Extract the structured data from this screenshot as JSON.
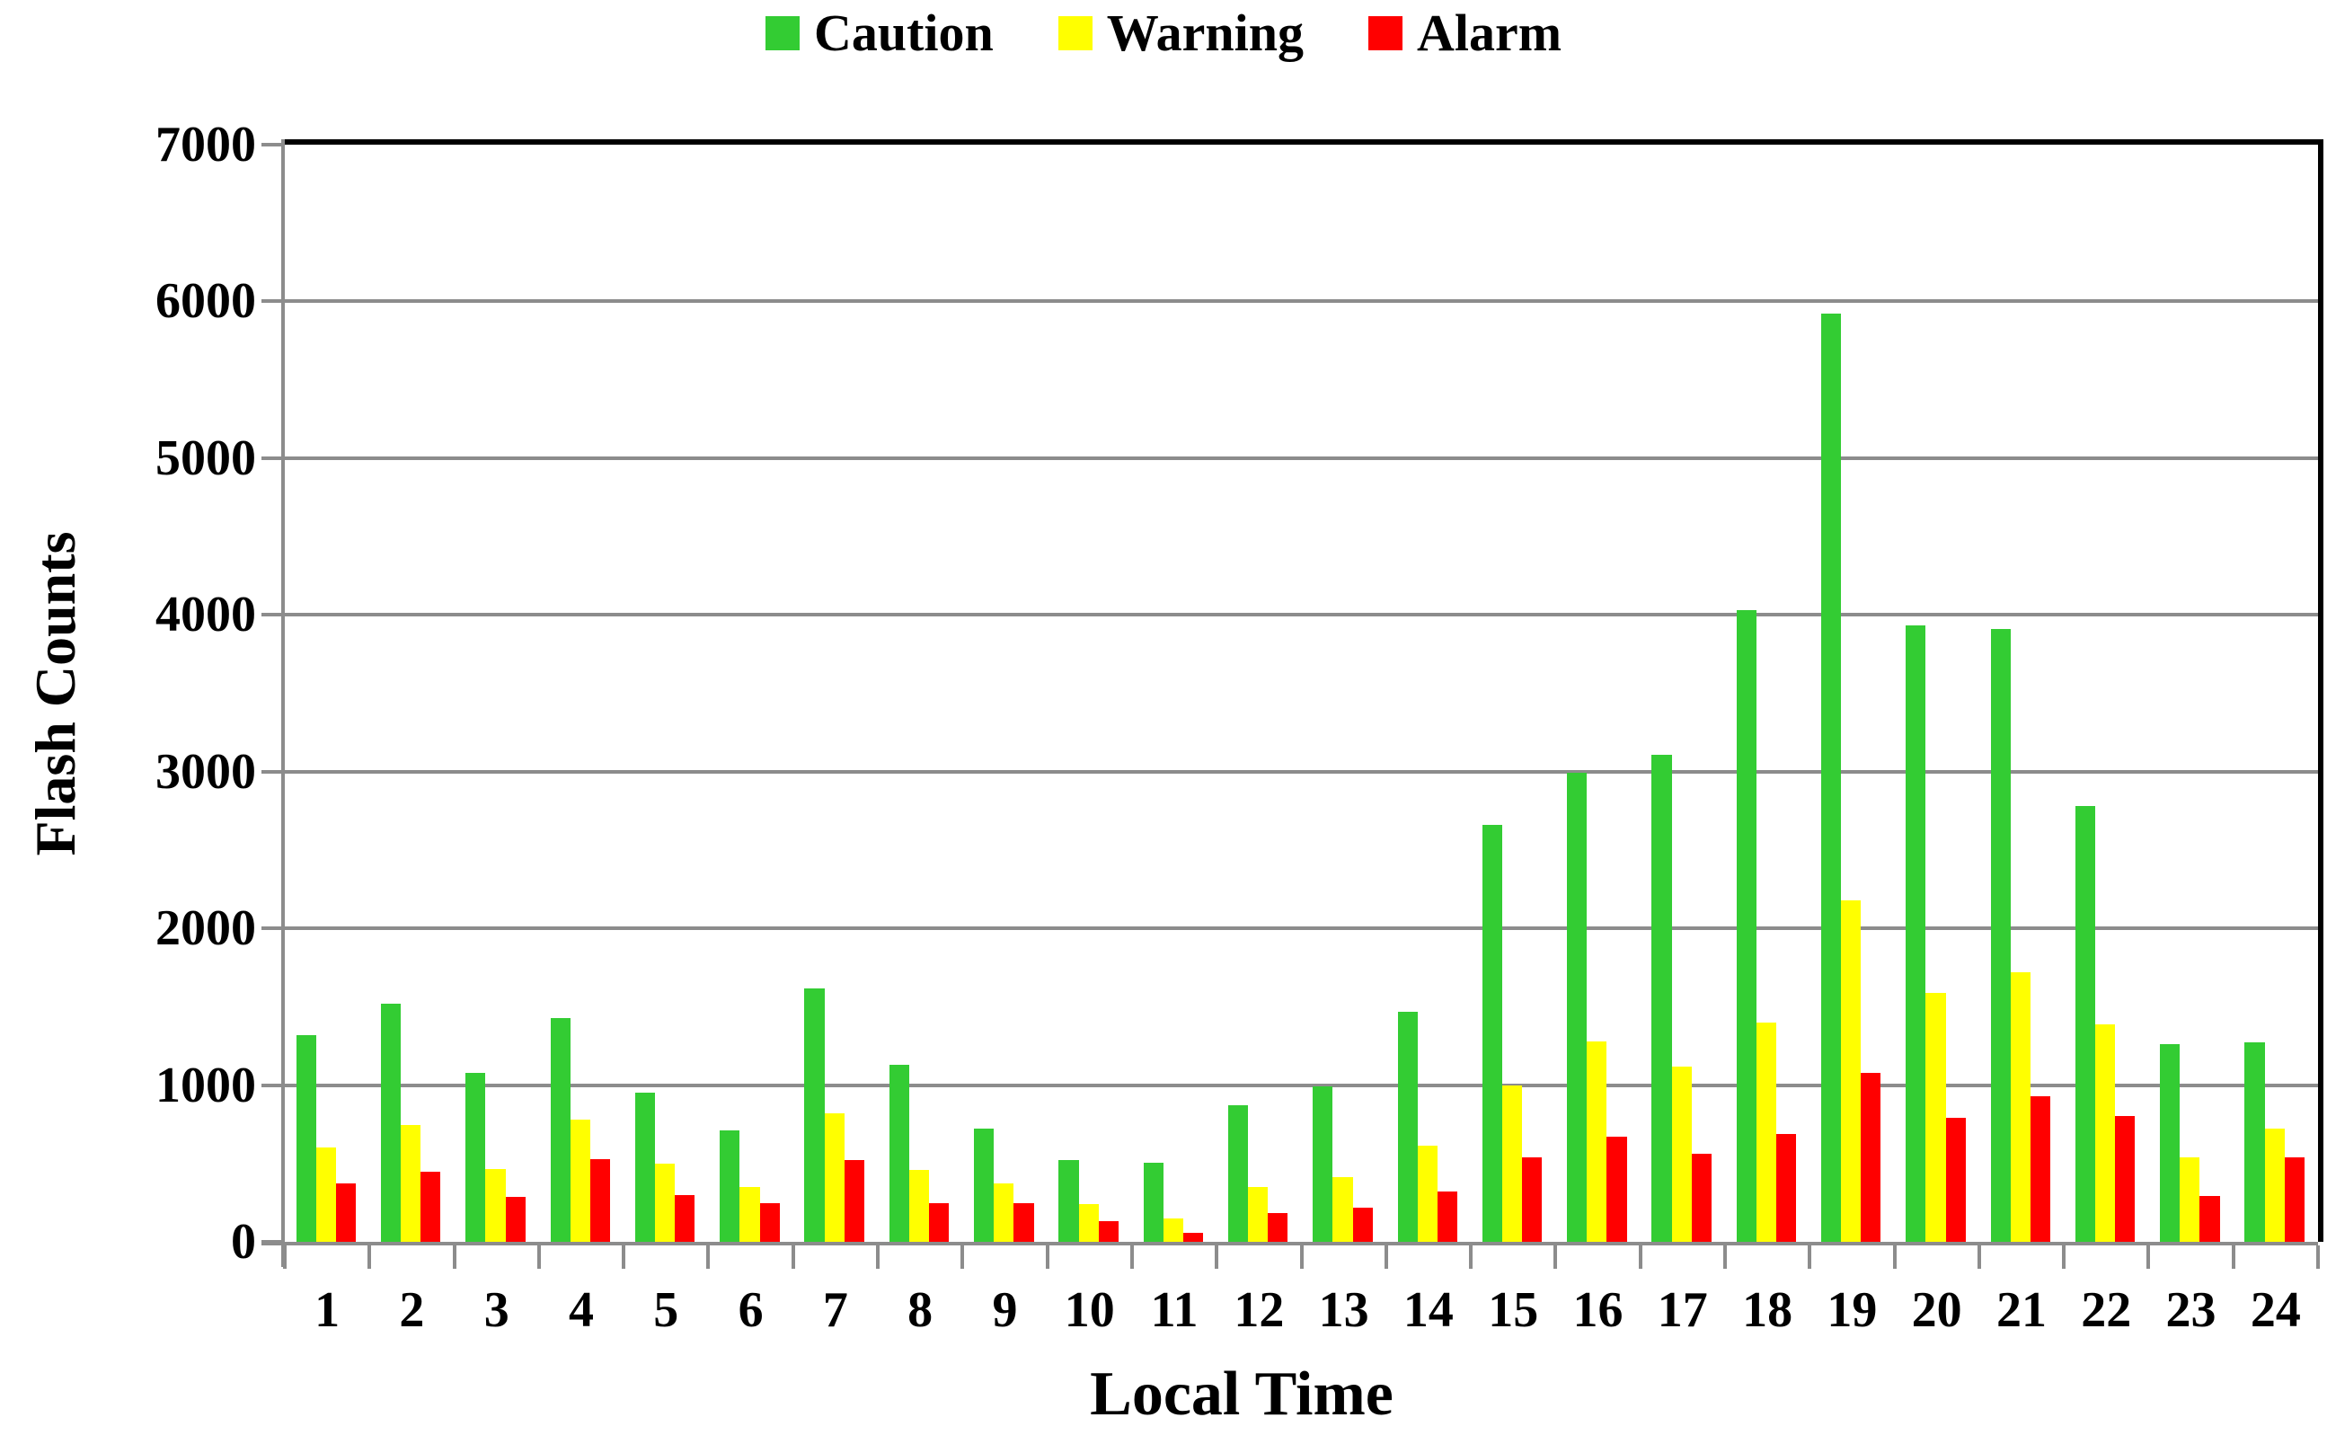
{
  "chart_data": {
    "type": "bar",
    "title": "",
    "xlabel": "Local Time",
    "ylabel": "Flash Counts",
    "categories": [
      "1",
      "2",
      "3",
      "4",
      "5",
      "6",
      "7",
      "8",
      "9",
      "10",
      "11",
      "12",
      "13",
      "14",
      "15",
      "16",
      "17",
      "18",
      "19",
      "20",
      "21",
      "22",
      "23",
      "24"
    ],
    "series": [
      {
        "name": "Caution",
        "color": "#33CC33",
        "values": [
          1320,
          1520,
          1080,
          1430,
          950,
          710,
          1615,
          1130,
          725,
          520,
          505,
          870,
          990,
          1470,
          2660,
          2990,
          3110,
          4030,
          5920,
          3930,
          3910,
          2780,
          1260,
          1270
        ]
      },
      {
        "name": "Warning",
        "color": "#FFFF00",
        "values": [
          600,
          745,
          465,
          780,
          500,
          350,
          820,
          460,
          370,
          240,
          150,
          350,
          410,
          615,
          1000,
          1280,
          1120,
          1400,
          2180,
          1590,
          1720,
          1390,
          540,
          720
        ]
      },
      {
        "name": "Alarm",
        "color": "#FF0000",
        "values": [
          370,
          450,
          285,
          525,
          300,
          245,
          520,
          245,
          245,
          130,
          55,
          185,
          220,
          320,
          540,
          670,
          560,
          690,
          1080,
          790,
          930,
          800,
          290,
          540
        ]
      }
    ],
    "ylim": [
      0,
      7000
    ],
    "yticks": [
      0,
      1000,
      2000,
      3000,
      4000,
      5000,
      6000,
      7000
    ],
    "grid": true,
    "legend_position": "top-center",
    "colors": {
      "gridline": "#8C8C8C",
      "axis": "#8C8C8C",
      "plot_border": "#000000",
      "text": "#000000"
    }
  }
}
